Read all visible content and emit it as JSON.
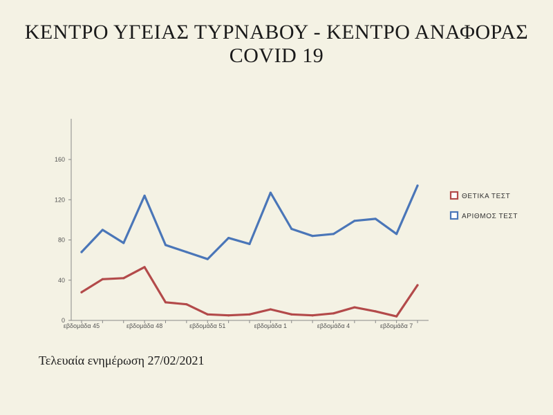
{
  "title": {
    "line1": "ΚΕΝΤΡΟ ΥΓΕΙΑΣ ΤΥΡΝΑΒΟΥ -  ΚΕΝΤΡΟ ΑΝΑΦΟΡΑΣ",
    "line2": "COVID 19"
  },
  "footer": "Τελευαία ενημέρωση 27/02/2021",
  "chart_data": {
    "type": "line",
    "title": "",
    "xlabel": "",
    "ylabel": "",
    "ylim": [
      0,
      160
    ],
    "yticks": [
      0,
      40,
      80,
      120,
      160
    ],
    "grid": false,
    "legend_position": "right",
    "categories": [
      "εβδομάδα 45",
      "",
      "",
      "εβδομάδα 48",
      "",
      "",
      "εβδομάδα 51",
      "",
      "",
      "εβδομάδα 1",
      "",
      "",
      "εβδομάδα 4",
      "",
      "",
      "εβδομάδα 7",
      ""
    ],
    "series": [
      {
        "name": "ΘΕΤΙΚΑ ΤΕΣΤ",
        "color": "#b34a4a",
        "values": [
          28,
          41,
          42,
          53,
          18,
          16,
          6,
          5,
          6,
          11,
          6,
          5,
          7,
          13,
          9,
          4,
          35
        ]
      },
      {
        "name": "ΑΡΙΘΜΟΣ ΤΕΣΤ",
        "color": "#4a76b8",
        "values": [
          68,
          90,
          77,
          124,
          75,
          68,
          61,
          82,
          76,
          127,
          91,
          84,
          86,
          99,
          101,
          86,
          134
        ]
      }
    ]
  }
}
